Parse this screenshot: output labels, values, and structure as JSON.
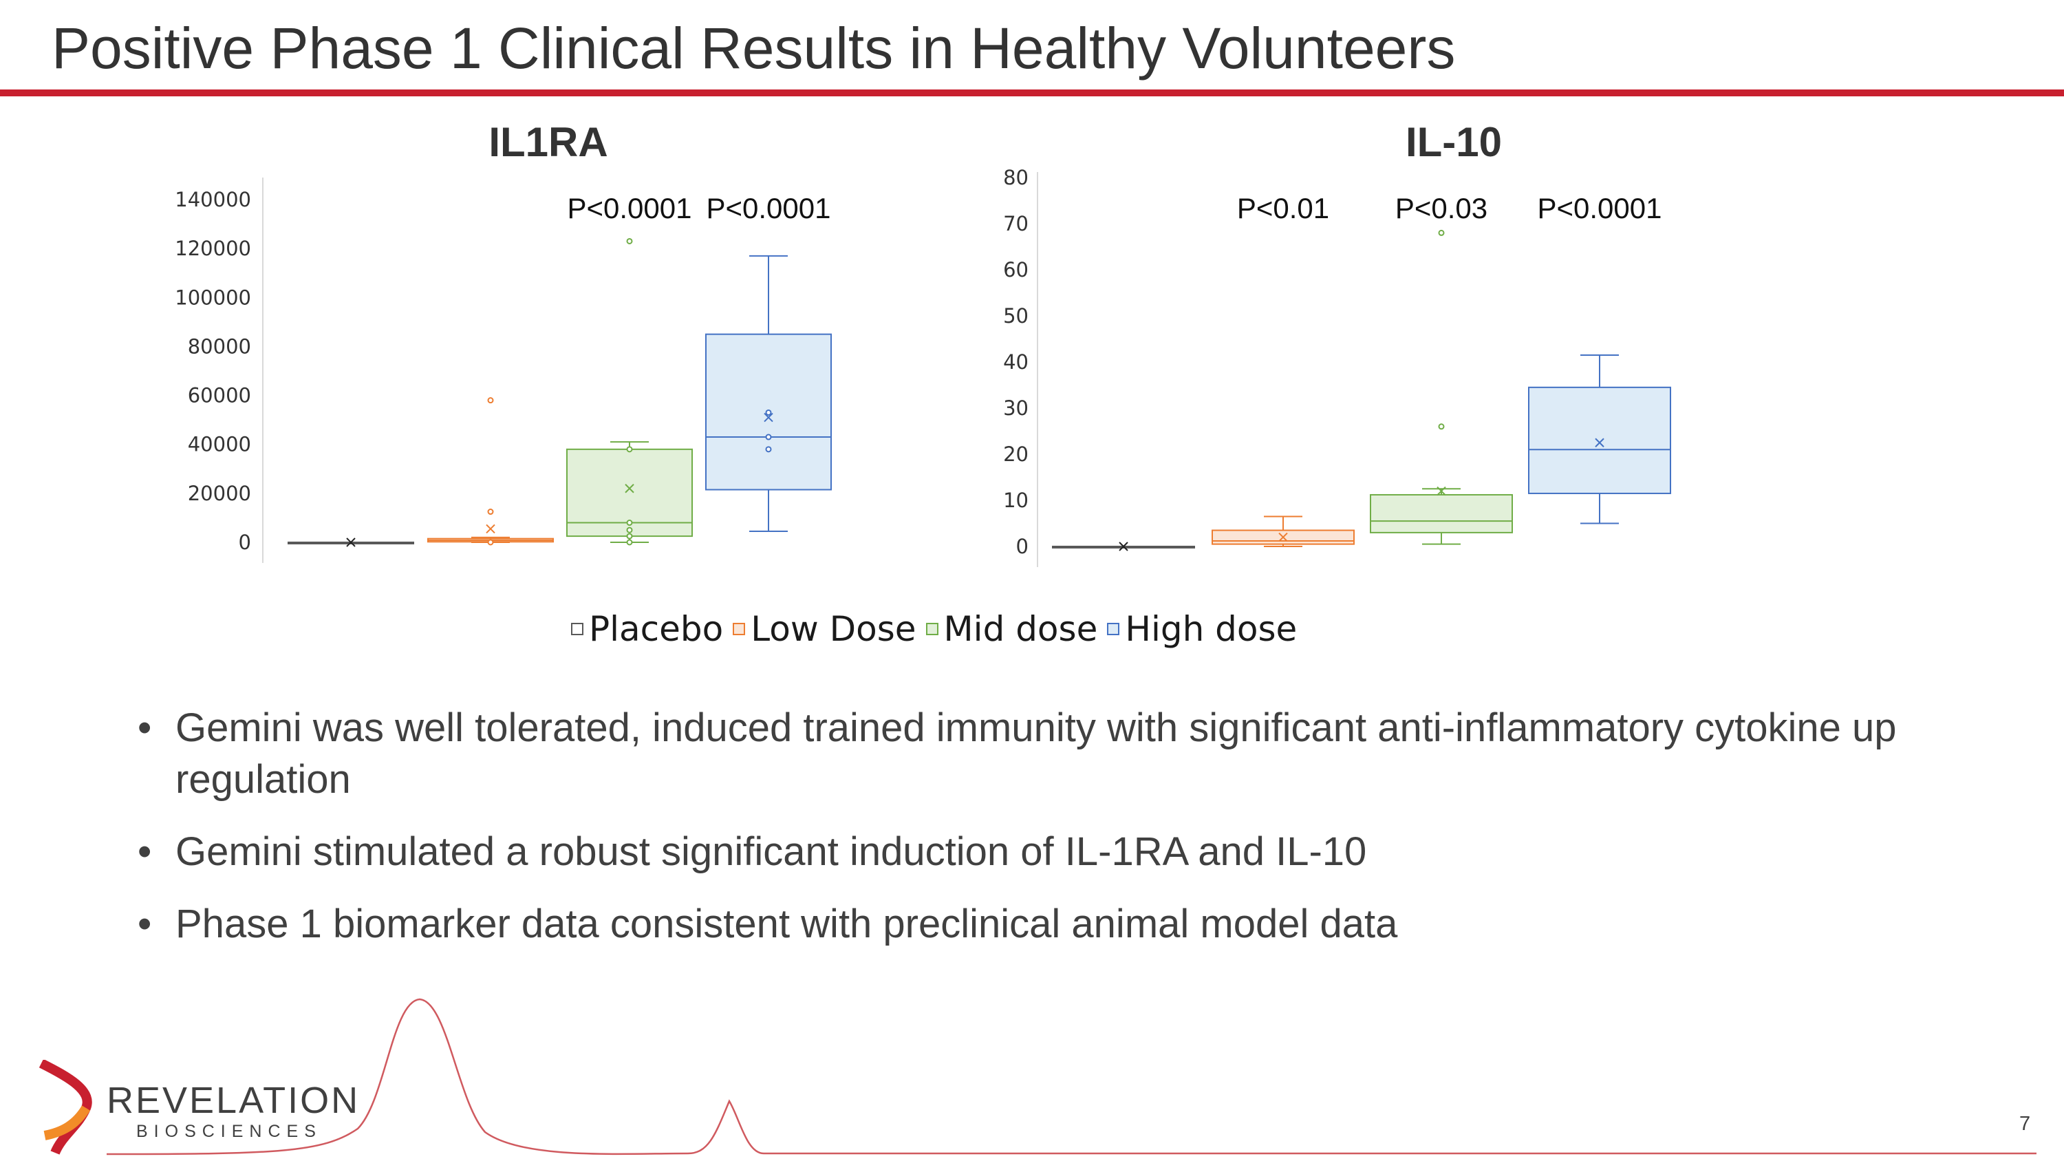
{
  "slide": {
    "title": "Positive Phase 1 Clinical Results in Healthy Volunteers",
    "page_number": "7"
  },
  "legend": [
    {
      "label": "Placebo",
      "color": "#595959",
      "fill": "#ffffff"
    },
    {
      "label": "Low Dose",
      "color": "#ed7d31",
      "fill": "#fbe5d6"
    },
    {
      "label": "Mid dose",
      "color": "#70ad47",
      "fill": "#e2f0d9"
    },
    {
      "label": "High dose",
      "color": "#4472c4",
      "fill": "#ddebf7"
    }
  ],
  "bullets": [
    "Gemini was well tolerated, induced trained immunity with significant anti-inflammatory cytokine up regulation",
    "Gemini stimulated a robust significant induction of IL-1RA and IL-10",
    "Phase 1 biomarker data consistent with preclinical animal model data"
  ],
  "logo": {
    "name": "REVELATION",
    "sub": "BIOSCIENCES"
  },
  "chart_data": [
    {
      "type": "box",
      "title": "IL1RA",
      "ylim": [
        0,
        140000
      ],
      "yticks": [
        0,
        20000,
        40000,
        60000,
        80000,
        100000,
        120000,
        140000
      ],
      "grid": false,
      "legend_position": "bottom",
      "categories": [
        "Placebo",
        "Low Dose",
        "Mid dose",
        "High dose"
      ],
      "pvalues": [
        "",
        "",
        "P<0.0001",
        "P<0.0001"
      ],
      "series": [
        {
          "name": "Placebo",
          "min": 0,
          "q1": 0,
          "median": 0,
          "q3": 0,
          "max": 0,
          "mean": 0,
          "outliers": []
        },
        {
          "name": "Low Dose",
          "min": 0,
          "q1": 200,
          "median": 800,
          "q3": 1500,
          "max": 2000,
          "mean": 5500,
          "outliers": [
            58000,
            12500,
            0
          ]
        },
        {
          "name": "Mid dose",
          "min": 0,
          "q1": 2500,
          "median": 8000,
          "q3": 38000,
          "max": 41000,
          "mean": 22000,
          "outliers": [
            123000,
            38000,
            8000,
            5000,
            2500,
            0
          ]
        },
        {
          "name": "High dose",
          "min": 4500,
          "q1": 21500,
          "median": 43000,
          "q3": 85000,
          "max": 117000,
          "mean": 51000,
          "outliers": [
            53000,
            43000,
            38000
          ]
        }
      ]
    },
    {
      "type": "box",
      "title": "IL-10",
      "ylim": [
        0,
        80
      ],
      "yticks": [
        0,
        10,
        20,
        30,
        40,
        50,
        60,
        70,
        80
      ],
      "grid": false,
      "legend_position": "bottom",
      "categories": [
        "Placebo",
        "Low Dose",
        "Mid dose",
        "High dose"
      ],
      "pvalues": [
        "",
        "P<0.01",
        "P<0.03",
        "P<0.0001"
      ],
      "series": [
        {
          "name": "Placebo",
          "min": 0,
          "q1": 0,
          "median": 0,
          "q3": 0,
          "max": 0,
          "mean": 0,
          "outliers": []
        },
        {
          "name": "Low Dose",
          "min": 0,
          "q1": 0.5,
          "median": 1.2,
          "q3": 3.5,
          "max": 6.5,
          "mean": 2,
          "outliers": []
        },
        {
          "name": "Mid dose",
          "min": 0.5,
          "q1": 3,
          "median": 5.5,
          "q3": 11.2,
          "max": 12.5,
          "mean": 12,
          "outliers": [
            68,
            26
          ]
        },
        {
          "name": "High dose",
          "min": 5,
          "q1": 11.5,
          "median": 21,
          "q3": 34.5,
          "max": 41.5,
          "mean": 22.5,
          "outliers": []
        }
      ]
    }
  ]
}
